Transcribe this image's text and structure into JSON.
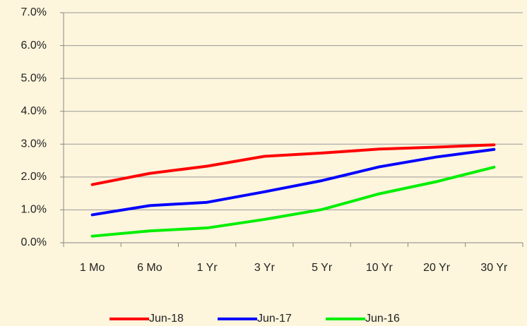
{
  "chart_data": {
    "type": "line",
    "categories": [
      "1 Mo",
      "6 Mo",
      "1 Yr",
      "3 Yr",
      "5 Yr",
      "10 Yr",
      "20 Yr",
      "30 Yr"
    ],
    "series": [
      {
        "name": "Jun-18",
        "color": "#ff0000",
        "values": [
          1.77,
          2.11,
          2.33,
          2.63,
          2.73,
          2.85,
          2.91,
          2.98
        ]
      },
      {
        "name": "Jun-17",
        "color": "#0000ff",
        "values": [
          0.85,
          1.13,
          1.23,
          1.55,
          1.89,
          2.31,
          2.61,
          2.84
        ]
      },
      {
        "name": "Jun-16",
        "color": "#00ee00",
        "values": [
          0.2,
          0.36,
          0.45,
          0.71,
          1.01,
          1.49,
          1.86,
          2.3
        ]
      }
    ],
    "ylim": [
      0,
      7
    ],
    "yticks": [
      {
        "value": 0,
        "label": "0.0%"
      },
      {
        "value": 1,
        "label": "1.0%"
      },
      {
        "value": 2,
        "label": "2.0%"
      },
      {
        "value": 3,
        "label": "3.0%"
      },
      {
        "value": 4,
        "label": "4.0%"
      },
      {
        "value": 5,
        "label": "5.0%"
      },
      {
        "value": 6,
        "label": "6.0%"
      },
      {
        "value": 7,
        "label": "7.0%"
      }
    ],
    "grid": true,
    "legend": "bottom"
  }
}
